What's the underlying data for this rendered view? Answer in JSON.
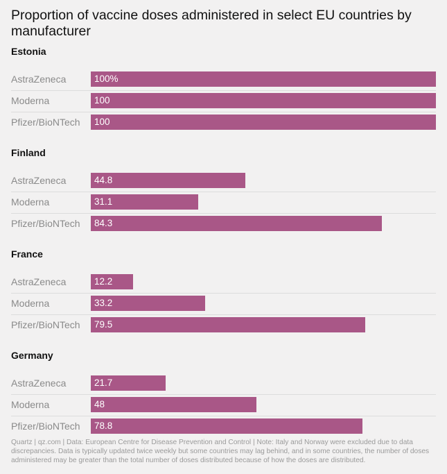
{
  "title": "Proportion of vaccine doses administered in select EU countries by manufacturer",
  "footnote": "Quartz | qz.com | Data: European Centre for Disease Prevention and Control | Note: Italy and Norway were excluded due to data discrepancies. Data is typically updated twice weekly but some countries may lag behind, and in some countries, the number of doses administered may be greater than the total number of doses distributed because of how the doses are distributed.",
  "colors": {
    "bar": "#a95787",
    "background": "#f2f1f1"
  },
  "chart_data": {
    "type": "bar",
    "orientation": "horizontal",
    "xlim": [
      0,
      100
    ],
    "value_suffix_first": "%",
    "categories": [
      "AstraZeneca",
      "Moderna",
      "Pfizer/BioNTech"
    ],
    "groups": [
      {
        "name": "Estonia",
        "values": [
          100,
          100,
          100
        ]
      },
      {
        "name": "Finland",
        "values": [
          44.8,
          31.1,
          84.3
        ]
      },
      {
        "name": "France",
        "values": [
          12.2,
          33.2,
          79.5
        ]
      },
      {
        "name": "Germany",
        "values": [
          21.7,
          48,
          78.8
        ]
      }
    ]
  }
}
